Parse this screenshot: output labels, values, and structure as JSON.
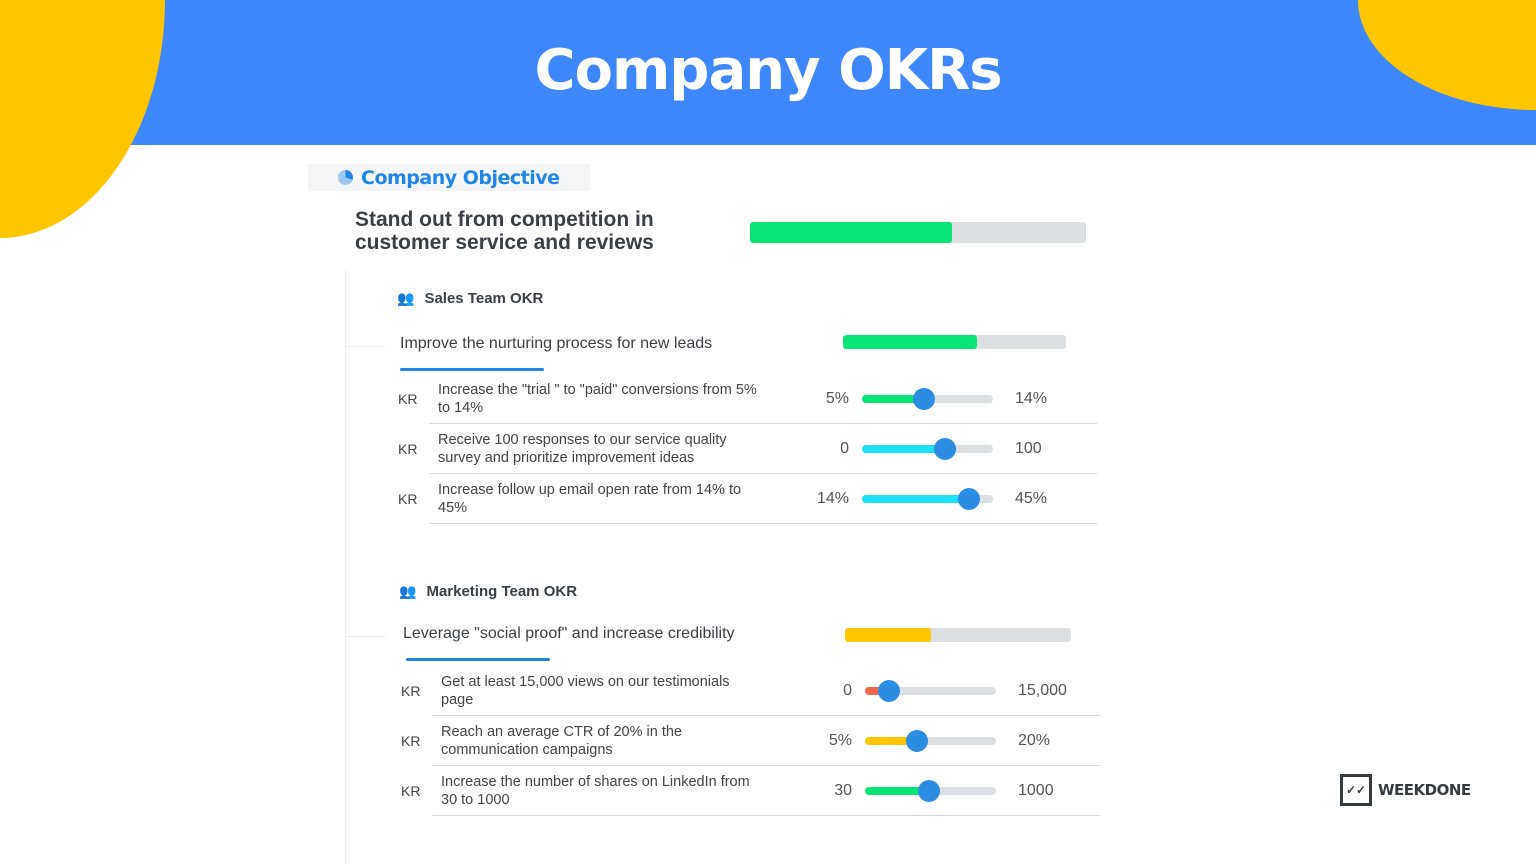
{
  "header": {
    "title": "Company OKRs"
  },
  "colors": {
    "banner": "#3d87fb",
    "accent_yellow": "#fec600",
    "progress_green": "#09e477",
    "progress_cyan": "#1ee0f7",
    "progress_yellow": "#fec600",
    "progress_red": "#f0674a",
    "knob": "#2b8de2"
  },
  "objective": {
    "header": "Company Objective",
    "icon": "pie-chart-icon",
    "title": "Stand out from competition in customer service and reviews",
    "progress": 0.6
  },
  "teams": [
    {
      "name": "Sales Team OKR",
      "icon": "team-icon",
      "goal": "Improve the nurturing process for new leads",
      "progress": 0.6,
      "progress_color": "#09e477",
      "krs": [
        {
          "label": "KR",
          "text": "Increase the \"trial \" to \"paid\" conversions from 5% to 14%",
          "from": "5%",
          "to": "14%",
          "progress": 0.47,
          "color": "#09e477"
        },
        {
          "label": "KR",
          "text": "Receive 100 responses to our service quality survey and prioritize improvement ideas",
          "from": "0",
          "to": "100",
          "progress": 0.63,
          "color": "#1ee0f7"
        },
        {
          "label": "KR",
          "text": "Increase follow up email open rate from 14% to 45%",
          "from": "14%",
          "to": "45%",
          "progress": 0.82,
          "color": "#1ee0f7"
        }
      ]
    },
    {
      "name": "Marketing Team OKR",
      "icon": "team-icon",
      "goal": "Leverage \"social proof\" and increase credibility",
      "progress": 0.38,
      "progress_color": "#fec600",
      "krs": [
        {
          "label": "KR",
          "text": "Get at least 15,000 views on our testimonials page",
          "from": "0",
          "to": "15,000",
          "progress": 0.18,
          "color": "#f0674a"
        },
        {
          "label": "KR",
          "text": "Reach an average CTR of 20% in the communication campaigns",
          "from": "5%",
          "to": "20%",
          "progress": 0.4,
          "color": "#fec600"
        },
        {
          "label": "KR",
          "text": "Increase the number of shares on LinkedIn from 30 to 1000",
          "from": "30",
          "to": "1000",
          "progress": 0.49,
          "color": "#09e477"
        }
      ]
    }
  ],
  "logo": {
    "name": "WEEKDONE",
    "icon": "checkmarks-icon"
  }
}
